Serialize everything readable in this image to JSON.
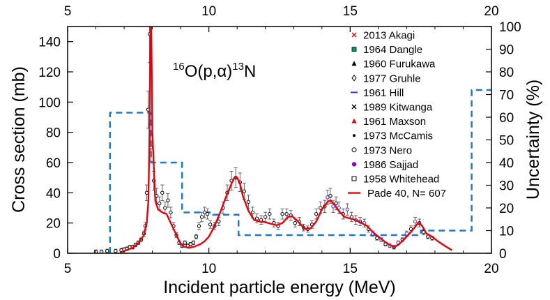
{
  "chart_data": {
    "type": "scatter",
    "xlabel": "Incident particle energy (MeV)",
    "ylabel_left": "Cross section (mb)",
    "ylabel_right": "Uncertainty (%)",
    "reaction": {
      "pre": "16",
      "a": "O(p,",
      "alpha": "α",
      "b": ")",
      "post": "13",
      "c": "N"
    },
    "xlim": [
      5,
      20
    ],
    "ylim_left": [
      0,
      150
    ],
    "ylim_right": [
      0,
      100
    ],
    "xticks": [
      5,
      10,
      15,
      20
    ],
    "xtick_labels": [
      "5",
      "10",
      "15",
      "20"
    ],
    "yticks_left": [
      0,
      20,
      40,
      60,
      80,
      100,
      120,
      140
    ],
    "yticks_left_labels": [
      "0",
      "20",
      "40",
      "60",
      "80",
      "100",
      "120",
      "140"
    ],
    "yticks_right": [
      0,
      10,
      20,
      30,
      40,
      50,
      60,
      70,
      80,
      90,
      100
    ],
    "yticks_right_labels": [
      "0",
      "10",
      "20",
      "30",
      "40",
      "50",
      "60",
      "70",
      "80",
      "90",
      "100"
    ],
    "legend": [
      {
        "label": "2013 Akagi",
        "color": "#e8000b",
        "marker": "x"
      },
      {
        "label": "1964 Dangle",
        "color": "#009e73",
        "marker": "square"
      },
      {
        "label": "1960 Furukawa",
        "color": "#000000",
        "marker": "triangle"
      },
      {
        "label": "1977 Gruhle",
        "color": "#000000",
        "marker": "diamond"
      },
      {
        "label": "1961 Hill",
        "color": "#3333ff",
        "marker": "dash"
      },
      {
        "label": "1989 Kitwanga",
        "color": "#000000",
        "marker": "x"
      },
      {
        "label": "1961 Maxson",
        "color": "#e8000b",
        "marker": "triangle"
      },
      {
        "label": "1973 McCamis",
        "color": "#000000",
        "marker": "dot"
      },
      {
        "label": "1973 Nero",
        "color": "#000000",
        "marker": "circle"
      },
      {
        "label": "1986 Sajjad",
        "color": "#9400d3",
        "marker": "filled-circle"
      },
      {
        "label": "1958 Whitehead",
        "color": "#000000",
        "marker": "open-square"
      },
      {
        "label": "Pade 40, N= 607",
        "color": "#e8000b",
        "marker": "line"
      }
    ],
    "pade_fit": {
      "name": "Pade 40, N= 607",
      "x": [
        6.85,
        7.0,
        7.3,
        7.5,
        7.7,
        7.8,
        7.86,
        7.9,
        7.93,
        7.96,
        8.0,
        8.1,
        8.2,
        8.35,
        8.5,
        8.6,
        8.75,
        8.9,
        9.0,
        9.1,
        9.3,
        9.5,
        9.7,
        9.85,
        10.0,
        10.2,
        10.4,
        10.6,
        10.8,
        10.9,
        11.0,
        11.1,
        11.2,
        11.4,
        11.6,
        11.8,
        12.0,
        12.2,
        12.4,
        12.6,
        12.8,
        12.95,
        13.1,
        13.25,
        13.4,
        13.6,
        13.8,
        14.0,
        14.2,
        14.3,
        14.45,
        14.6,
        14.8,
        15.0,
        15.2,
        15.4,
        15.6,
        15.8,
        16.0,
        16.2,
        16.4,
        16.55,
        16.7,
        16.9,
        17.1,
        17.3,
        17.42,
        17.55,
        17.7,
        17.9,
        18.1,
        18.3,
        18.6
      ],
      "y": [
        0.5,
        1.5,
        3.5,
        6.5,
        12,
        20,
        35,
        80,
        150,
        150,
        80,
        35,
        29,
        27,
        26,
        22,
        16,
        10,
        6.5,
        4.5,
        3.5,
        4.5,
        6,
        8,
        11,
        18,
        27,
        37,
        46,
        50,
        50,
        46,
        38,
        28,
        22,
        21,
        20.5,
        19.5,
        18.5,
        20,
        24,
        24.5,
        22,
        19,
        16,
        16.5,
        21,
        29,
        34,
        35,
        32,
        28,
        24,
        23,
        22,
        20,
        18,
        14,
        11,
        8,
        5.5,
        4,
        5.5,
        9,
        13,
        17.5,
        20.5,
        18,
        13,
        11,
        8,
        5.5,
        2
      ]
    },
    "experimental_points": {
      "name": "all experiments",
      "x": [
        6.0,
        6.2,
        6.4,
        6.7,
        6.9,
        7.0,
        7.1,
        7.2,
        7.3,
        7.4,
        7.5,
        7.6,
        7.7,
        7.75,
        7.8,
        7.85,
        7.9,
        7.95,
        8.05,
        8.15,
        8.25,
        8.35,
        8.45,
        8.55,
        8.65,
        8.75,
        8.85,
        8.95,
        9.05,
        9.15,
        9.25,
        9.35,
        9.45,
        9.55,
        9.65,
        9.75,
        9.85,
        9.95,
        10.05,
        10.2,
        10.35,
        10.5,
        10.65,
        10.8,
        10.95,
        11.1,
        11.25,
        11.4,
        11.55,
        11.7,
        11.85,
        12.0,
        12.15,
        12.3,
        12.45,
        12.6,
        12.75,
        12.9,
        13.05,
        13.2,
        13.35,
        13.5,
        13.65,
        13.8,
        13.95,
        14.1,
        14.2,
        14.3,
        14.4,
        14.5,
        14.6,
        14.75,
        14.9,
        15.05,
        15.2,
        15.35,
        15.5,
        15.65,
        15.8,
        15.95,
        16.1,
        16.25,
        16.4,
        16.55,
        16.7,
        16.85,
        17.0,
        17.15,
        17.3,
        17.45,
        17.6,
        17.75,
        17.9
      ],
      "y": [
        1,
        1,
        1.5,
        1.5,
        2,
        2.5,
        3,
        4,
        4,
        5.5,
        7,
        9,
        13,
        18,
        40,
        95,
        145,
        70,
        48,
        38,
        33,
        40,
        30,
        35,
        27,
        18,
        12,
        7,
        5,
        7,
        5,
        6,
        7,
        11,
        18,
        24,
        27,
        26,
        19,
        18,
        21,
        30,
        40,
        48,
        50,
        47,
        41,
        34,
        27,
        23,
        22,
        24,
        26,
        20,
        18,
        26,
        26,
        25,
        20,
        21,
        17,
        16,
        19,
        26,
        30,
        31,
        37,
        38,
        31,
        33,
        30,
        26,
        29,
        24,
        22,
        21,
        20,
        16,
        13,
        10,
        9,
        6,
        5,
        4,
        7,
        9,
        13,
        16,
        21,
        20,
        14,
        11,
        10
      ]
    },
    "uncertainty": {
      "name": "Uncertainty (%)",
      "x": [
        6.5,
        6.5,
        7.95,
        7.95,
        8.25,
        8.25,
        9.05,
        9.05,
        10.15,
        10.15,
        11.05,
        11.05,
        15.35,
        15.35,
        16.45,
        16.45,
        17.5,
        17.5,
        19.3,
        19.3,
        20.0
      ],
      "y": [
        0,
        62,
        62,
        40,
        40,
        40,
        40,
        18,
        18,
        17,
        17,
        8,
        8,
        8,
        8,
        8,
        8,
        10,
        10,
        72,
        72
      ]
    }
  }
}
